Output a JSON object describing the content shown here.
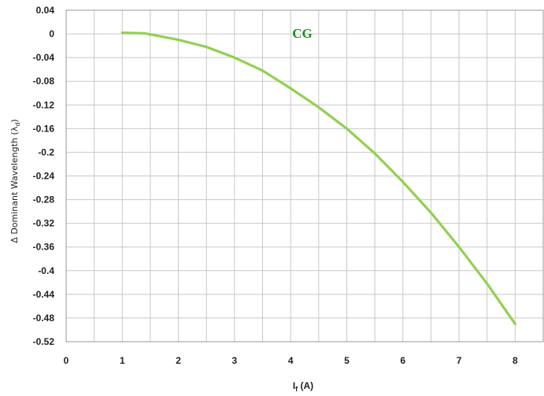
{
  "chart_data": {
    "type": "line",
    "title": "",
    "annotation": "CG",
    "xlabel": "I",
    "xlabel_sub": "f",
    "xlabel_unit": " (A)",
    "ylabel": "Δ Dominant Wavelength (λ",
    "ylabel_sub": "d",
    "ylabel_close": ")",
    "xlim": [
      0,
      8.5
    ],
    "ylim": [
      -0.52,
      0.04
    ],
    "x_ticks": [
      "0",
      "1",
      "2",
      "3",
      "4",
      "5",
      "6",
      "7",
      "8"
    ],
    "y_ticks": [
      "0.04",
      "0",
      "-0.04",
      "-0.08",
      "-0.12",
      "-0.16",
      "-0.2",
      "-0.24",
      "-0.28",
      "-0.32",
      "-0.36",
      "-0.4",
      "-0.44",
      "-0.48",
      "-0.52"
    ],
    "grid": true,
    "series": [
      {
        "color": "#92d050",
        "x": [
          1,
          1.4,
          2,
          2.5,
          3,
          3.5,
          4,
          4.5,
          5,
          5.5,
          6,
          6.5,
          7,
          7.5,
          8
        ],
        "y": [
          0.002,
          0.001,
          -0.01,
          -0.022,
          -0.04,
          -0.062,
          -0.092,
          -0.124,
          -0.16,
          -0.202,
          -0.25,
          -0.302,
          -0.36,
          -0.422,
          -0.49
        ]
      }
    ]
  }
}
